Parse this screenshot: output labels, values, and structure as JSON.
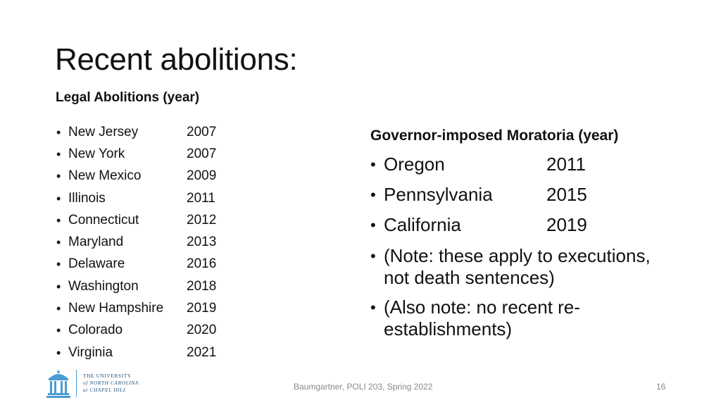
{
  "slide": {
    "title": "Recent abolitions:",
    "left_heading": "Legal Abolitions (year)",
    "legal_abolitions": [
      {
        "state": "New Jersey",
        "year": "2007"
      },
      {
        "state": "New York",
        "year": "2007"
      },
      {
        "state": "New Mexico",
        "year": "2009"
      },
      {
        "state": "Illinois",
        "year": "2011"
      },
      {
        "state": "Connecticut",
        "year": "2012"
      },
      {
        "state": "Maryland",
        "year": "2013"
      },
      {
        "state": "Delaware",
        "year": "2016"
      },
      {
        "state": "Washington",
        "year": "2018"
      },
      {
        "state": "New Hampshire",
        "year": "2019"
      },
      {
        "state": "Colorado",
        "year": "2020"
      },
      {
        "state": "Virginia",
        "year": "2021"
      }
    ],
    "right_heading": "Governor-imposed Moratoria (year)",
    "moratoria": [
      {
        "state": "Oregon",
        "year": "2011"
      },
      {
        "state": "Pennsylvania",
        "year": "2015"
      },
      {
        "state": "California",
        "year": "2019"
      }
    ],
    "notes": [
      "(Note: these apply to executions, not death sentences)",
      "(Also note: no recent re-establishments)"
    ],
    "bullet": "•"
  },
  "footer": {
    "credit": "Baumgartner, POLI 203, Spring 2022",
    "page_number": "16"
  },
  "logo": {
    "line1": "THE UNIVERSITY",
    "line2": "of NORTH CAROLINA",
    "line3": "at CHAPEL HILL"
  },
  "colors": {
    "text": "#111111",
    "footer": "#888888",
    "unc_blue": "#4b9cd3",
    "unc_navy": "#1f4f7a"
  }
}
